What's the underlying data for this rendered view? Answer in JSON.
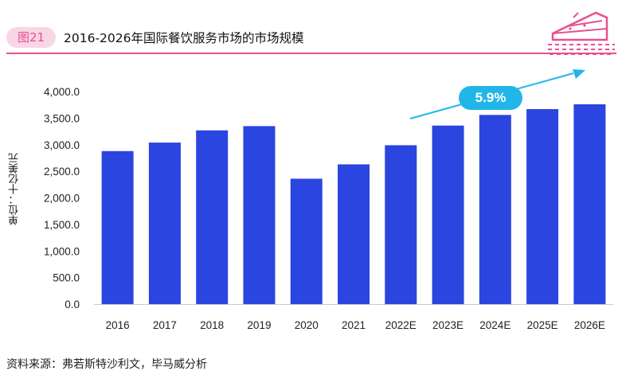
{
  "header": {
    "figure_label": "图21",
    "title": "2016-2026年国际餐饮服务市场的市场规模"
  },
  "chart_data": {
    "type": "bar",
    "title": "2016-2026年国际餐饮服务市场的市场规模",
    "xlabel": "",
    "ylabel": "单位：十亿美元",
    "categories": [
      "2016",
      "2017",
      "2018",
      "2019",
      "2020",
      "2021",
      "2022E",
      "2023E",
      "2024E",
      "2025E",
      "2026E"
    ],
    "values": [
      2880,
      3040,
      3270,
      3350,
      2360,
      2630,
      2990,
      3360,
      3560,
      3670,
      3760
    ],
    "ylim": [
      0,
      4000
    ],
    "yticks": [
      "0.0",
      "500.0",
      "1,000.0",
      "1,500.0",
      "2,000.0",
      "2,500.0",
      "3,000.0",
      "3,500.0",
      "4,000.0"
    ],
    "ytick_values": [
      0,
      500,
      1000,
      1500,
      2000,
      2500,
      3000,
      3500,
      4000
    ],
    "grid": false,
    "bar_color": "#2b45e0",
    "annotation": {
      "label": "5.9%",
      "color": "#22b6e8"
    }
  },
  "footer": {
    "source": "资料来源：弗若斯特沙利文，毕马威分析"
  },
  "colors": {
    "accent": "#e8508e",
    "badge_bg": "#f9d6e6",
    "bar": "#2b45e0",
    "growth": "#22b6e8"
  }
}
